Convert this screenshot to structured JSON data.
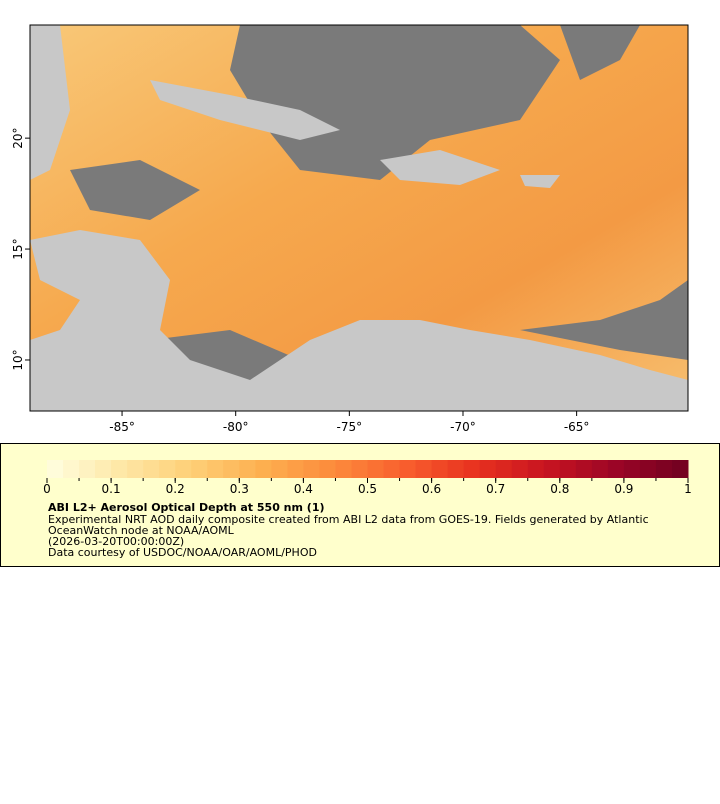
{
  "map": {
    "xlim": [
      -89.05,
      -60.1
    ],
    "ylim": [
      7.7,
      25.1
    ],
    "xticks": [
      {
        "value": -85,
        "label": "-85°"
      },
      {
        "value": -80,
        "label": "-80°"
      },
      {
        "value": -75,
        "label": "-75°"
      },
      {
        "value": -70,
        "label": "-70°"
      },
      {
        "value": -65,
        "label": "-65°"
      }
    ],
    "yticks": [
      {
        "value": 10,
        "label": "10°"
      },
      {
        "value": 15,
        "label": "15°"
      },
      {
        "value": 20,
        "label": "20°"
      }
    ]
  },
  "legend": {
    "range": [
      0,
      1
    ],
    "ticks": [
      0,
      0.1,
      0.2,
      0.3,
      0.4,
      0.5,
      0.6,
      0.7,
      0.8,
      0.9,
      1
    ],
    "colors": [
      "#ffffe0",
      "#fee8a8",
      "#fed078",
      "#fdb050",
      "#fc8c3c",
      "#f9602e",
      "#e8321f",
      "#c81420",
      "#9a0526",
      "#700020"
    ],
    "title": "ABI L2+ Aerosol Optical Depth at 550 nm (1)",
    "lines": [
      "Experimental NRT AOD daily composite created from ABI L2 data from GOES-19. Fields generated by Atlantic",
      "OceanWatch node at NOAA/AOML",
      "(2026-03-20T00:00:00Z)",
      "Data courtesy of USDOC/NOAA/OAR/AOML/PHOD"
    ]
  }
}
